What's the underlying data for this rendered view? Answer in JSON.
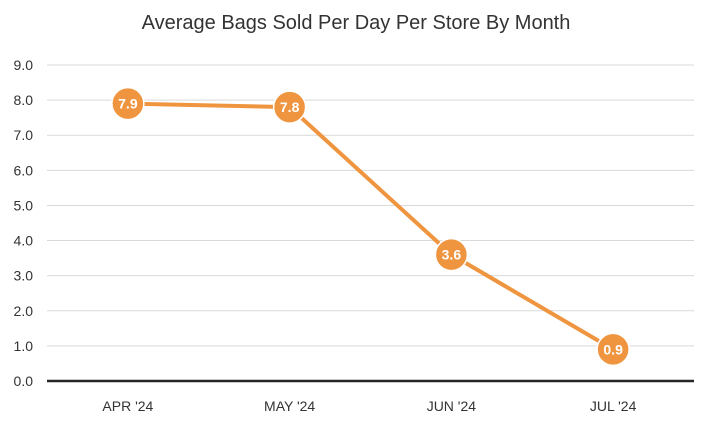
{
  "chart_data": {
    "type": "line",
    "title": "Average Bags Sold Per Day Per Store By Month",
    "categories": [
      "APR '24",
      "MAY '24",
      "JUN '24",
      "JUL '24"
    ],
    "series": [
      {
        "name": "Average Bags Sold Per Day Per Store",
        "values": [
          7.9,
          7.8,
          3.6,
          0.9
        ]
      }
    ],
    "data_labels": [
      "7.9",
      "7.8",
      "3.6",
      "0.9"
    ],
    "ylim": [
      0,
      9
    ],
    "yticks": [
      "0.0",
      "1.0",
      "2.0",
      "3.0",
      "4.0",
      "5.0",
      "6.0",
      "7.0",
      "8.0",
      "9.0"
    ],
    "xlabel": "",
    "ylabel": "",
    "grid": true,
    "colors": {
      "line": "#F0953F",
      "grid": "#d9d9d9",
      "axis": "#262626"
    }
  }
}
